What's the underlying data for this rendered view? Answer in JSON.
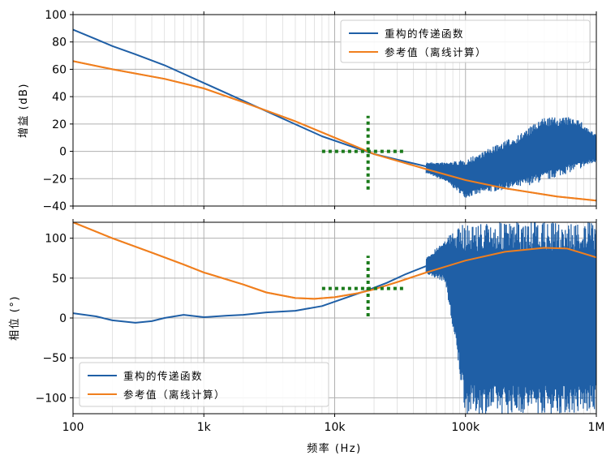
{
  "chart_data": [
    {
      "type": "line",
      "xscale": "log",
      "xlim": [
        100,
        1000000
      ],
      "ylim": [
        -40,
        100
      ],
      "ylabel": "增益 (dB)",
      "yticks": [
        -40,
        -20,
        0,
        20,
        40,
        60,
        80,
        100
      ],
      "grid": true,
      "legend_position": "top-right",
      "series": [
        {
          "name": "重构的传递函数",
          "color": "#1f5fa6",
          "x": [
            100,
            150,
            200,
            300,
            500,
            1000,
            2000,
            4000,
            8000,
            15000,
            20000,
            30000,
            50000
          ],
          "y": [
            89,
            82,
            77,
            71,
            63,
            50,
            37,
            24,
            11,
            2,
            -2,
            -6,
            -11
          ],
          "noisy_band": [
            {
              "x": 50000,
              "lo": -16,
              "hi": -8
            },
            {
              "x": 70000,
              "lo": -22,
              "hi": -8
            },
            {
              "x": 100000,
              "lo": -34,
              "hi": -6
            },
            {
              "x": 150000,
              "lo": -30,
              "hi": 2
            },
            {
              "x": 250000,
              "lo": -27,
              "hi": 12
            },
            {
              "x": 400000,
              "lo": -22,
              "hi": 25
            },
            {
              "x": 700000,
              "lo": -14,
              "hi": 25
            },
            {
              "x": 1000000,
              "lo": -8,
              "hi": 12
            }
          ]
        },
        {
          "name": "参考值（离线计算）",
          "color": "#f07f1e",
          "x": [
            100,
            200,
            500,
            1000,
            2000,
            5000,
            10000,
            20000,
            50000,
            100000,
            200000,
            500000,
            1000000
          ],
          "y": [
            66,
            60,
            53,
            46,
            36,
            22,
            10,
            -2,
            -13,
            -21,
            -27,
            -33,
            -36
          ]
        }
      ],
      "markers": {
        "color": "#1a7a1a",
        "x": 18000,
        "y": 0,
        "xrange": [
          8000,
          35000
        ],
        "yrange": [
          -28,
          26
        ]
      }
    },
    {
      "type": "line",
      "xscale": "log",
      "xlim": [
        100,
        1000000
      ],
      "ylim": [
        -120,
        120
      ],
      "ylabel": "相位 (°)",
      "yticks": [
        -100,
        -50,
        0,
        50,
        100
      ],
      "xticks": [
        {
          "value": 100,
          "label": "100"
        },
        {
          "value": 1000,
          "label": "1k"
        },
        {
          "value": 10000,
          "label": "10k"
        },
        {
          "value": 100000,
          "label": "100k"
        },
        {
          "value": 1000000,
          "label": "1M"
        }
      ],
      "xlabel": "频率 (Hz)",
      "grid": true,
      "legend_position": "bottom-left",
      "series": [
        {
          "name": "重构的传递函数",
          "color": "#1f5fa6",
          "x": [
            100,
            150,
            200,
            300,
            400,
            500,
            700,
            1000,
            1500,
            2000,
            3000,
            5000,
            8000,
            12000,
            18000,
            25000,
            35000,
            50000
          ],
          "y": [
            6,
            2,
            -3,
            -6,
            -4,
            0,
            4,
            1,
            3,
            4,
            7,
            9,
            15,
            25,
            35,
            44,
            55,
            65
          ],
          "noisy_band": [
            {
              "x": 50000,
              "lo": 55,
              "hi": 75
            },
            {
              "x": 70000,
              "lo": 45,
              "hi": 100
            },
            {
              "x": 100000,
              "lo": -120,
              "hi": 120
            },
            {
              "x": 1000000,
              "lo": -120,
              "hi": 120
            }
          ]
        },
        {
          "name": "参考值（离线计算）",
          "color": "#f07f1e",
          "x": [
            100,
            200,
            400,
            700,
            1000,
            2000,
            3000,
            5000,
            7000,
            10000,
            15000,
            20000,
            30000,
            50000,
            100000,
            200000,
            400000,
            600000,
            1000000
          ],
          "y": [
            120,
            100,
            82,
            67,
            57,
            42,
            32,
            25,
            24,
            26,
            31,
            36,
            45,
            57,
            72,
            83,
            88,
            87,
            76
          ]
        }
      ],
      "markers": {
        "color": "#1a7a1a",
        "x": 18000,
        "y": 37,
        "xrange": [
          8000,
          35000
        ],
        "yrange": [
          2,
          78
        ]
      }
    }
  ]
}
